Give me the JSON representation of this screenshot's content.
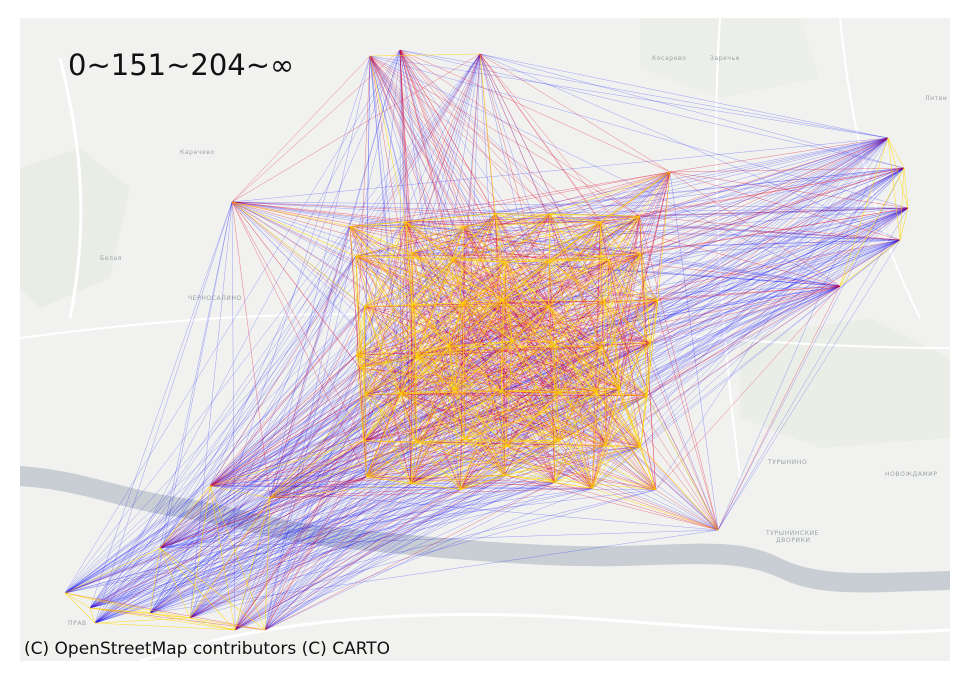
{
  "legend_text": "0~151~204~∞",
  "attribution": "(C) OpenStreetMap contributors (C) CARTO",
  "place_labels": [
    "Косарево",
    "Заречье",
    "Литви",
    "Карачево",
    "Белая",
    "ЧЕРНОСАЛИНО",
    "ТУРЫНИНО",
    "НОВОЖДАМИР",
    "ТУРЫНИНСКИЕ",
    "ДВОРИКИ",
    "ПРАВ"
  ],
  "edge_classes": [
    {
      "range": "0~151",
      "color": "#ffd400"
    },
    {
      "range": "151~204",
      "color": "#e0002a"
    },
    {
      "range": "204~∞",
      "color": "#0000ff"
    }
  ],
  "colors": {
    "basemap": "#f1f2ef",
    "water": "#c8ced3",
    "roads": "#ffffff"
  }
}
